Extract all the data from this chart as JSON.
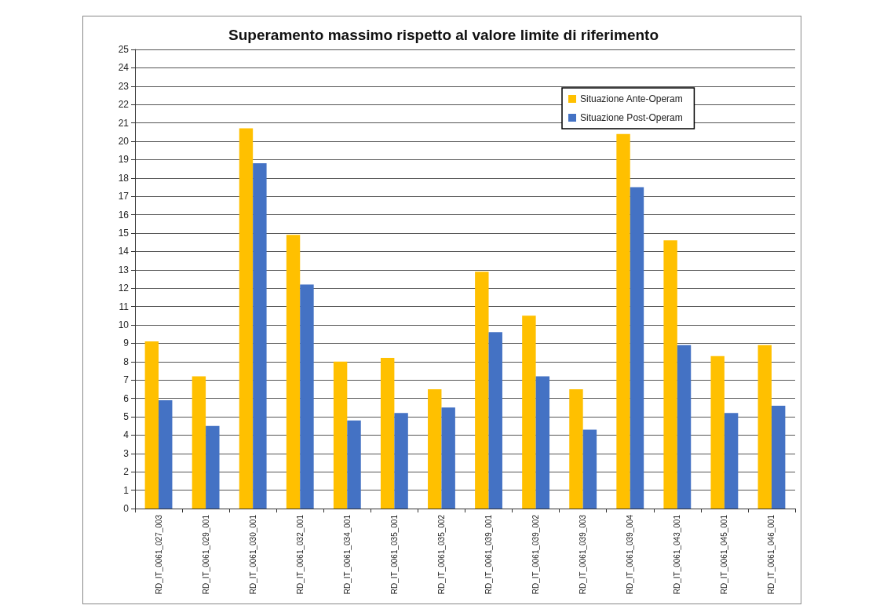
{
  "chart_data": {
    "type": "bar",
    "title": "Superamento massimo rispetto al valore limite di riferimento",
    "categories": [
      "RD_IT_0061_027_003",
      "RD_IT_0061_029_001",
      "RD_IT_0061_030_001",
      "RD_IT_0061_032_001",
      "RD_IT_0061_034_001",
      "RD_IT_0061_035_001",
      "RD_IT_0061_035_002",
      "RD_IT_0061_039_001",
      "RD_IT_0061_039_002",
      "RD_IT_0061_039_003",
      "RD_IT_0061_039_004",
      "RD_IT_0061_043_001",
      "RD_IT_0061_045_001",
      "RD_IT_0061_046_001"
    ],
    "series": [
      {
        "name": "Situazione Ante-Operam",
        "color": "#ffc000",
        "values": [
          9.1,
          7.2,
          20.7,
          14.9,
          8.0,
          8.2,
          6.5,
          12.9,
          10.5,
          6.5,
          20.4,
          14.6,
          8.3,
          8.9
        ]
      },
      {
        "name": "Situazione Post-Operam",
        "color": "#4472c4",
        "values": [
          5.9,
          4.5,
          18.8,
          12.2,
          4.8,
          5.2,
          5.5,
          9.6,
          7.2,
          4.3,
          17.5,
          8.9,
          5.2,
          5.6
        ]
      }
    ],
    "ylim": [
      0,
      25
    ],
    "yticks": [
      0,
      1,
      2,
      3,
      4,
      5,
      6,
      7,
      8,
      9,
      10,
      11,
      12,
      13,
      14,
      15,
      16,
      17,
      18,
      19,
      20,
      21,
      22,
      23,
      24,
      25
    ],
    "grid": "y",
    "legend": "top right"
  }
}
